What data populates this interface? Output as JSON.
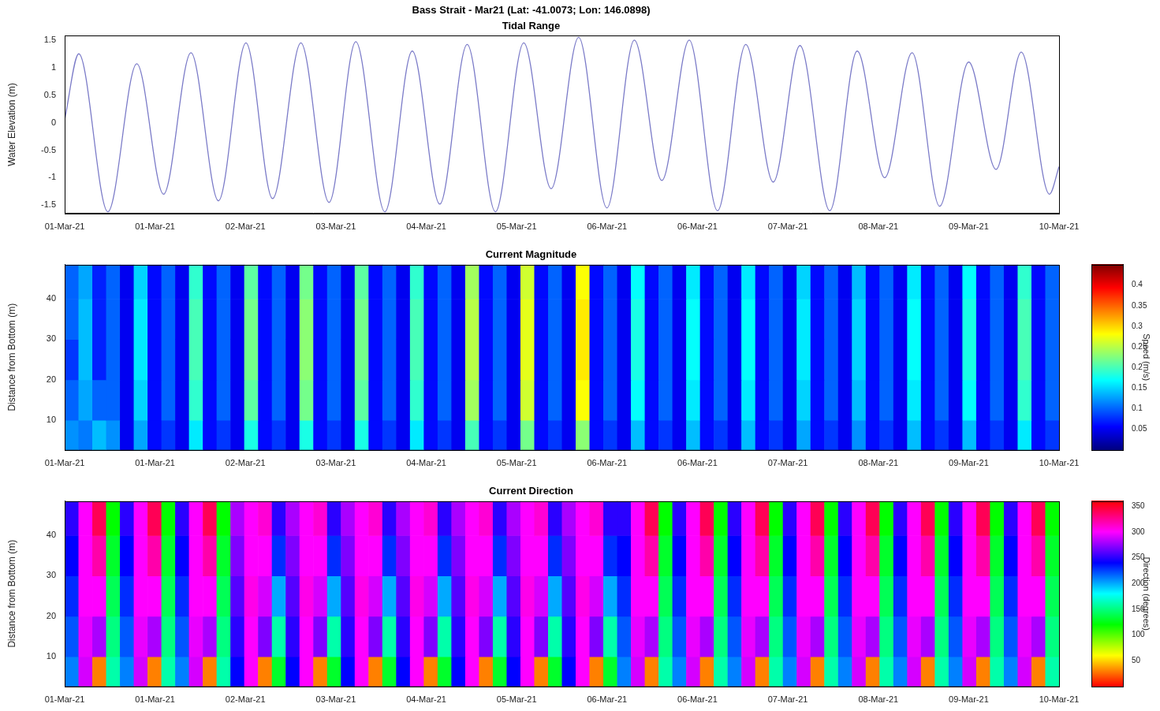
{
  "chart_data": [
    {
      "type": "line",
      "title": "Bass Strait - Mar21 (Lat: -41.0073; Lon: 146.0898)",
      "subtitle": "Tidal Range",
      "ylabel": "Water Elevation (m)",
      "color": "#7b7bc8",
      "grid": false,
      "x": [
        0,
        0.128,
        0.391,
        0.653,
        0.895,
        1.143,
        1.392,
        1.641,
        1.882,
        2.138,
        2.393,
        2.635,
        2.898,
        3.146,
        3.395,
        3.643,
        3.899,
        4.155,
        4.403,
        4.652,
        4.908,
        5.156,
        5.405,
        5.653,
        5.909,
        6.165,
        6.413,
        6.655,
        6.925,
        7.173,
        7.422,
        7.67,
        7.919,
        8.182,
        8.43,
        8.658,
        8.913,
        9
      ],
      "values": [
        0.05,
        1.25,
        -1.62,
        1.07,
        -1.3,
        1.27,
        -1.42,
        1.45,
        -1.38,
        1.45,
        -1.45,
        1.47,
        -1.62,
        1.3,
        -1.48,
        1.42,
        -1.62,
        1.45,
        -1.2,
        1.55,
        -1.55,
        1.5,
        -1.05,
        1.5,
        -1.6,
        1.42,
        -1.08,
        1.4,
        -1.6,
        1.3,
        -1.0,
        1.27,
        -1.52,
        1.1,
        -0.85,
        1.28,
        -1.3,
        -0.8
      ],
      "xlim": [
        0,
        9
      ],
      "xticks": [
        {
          "value": 0,
          "label": "01-Mar-21"
        },
        {
          "value": 0.818,
          "label": "01-Mar-21"
        },
        {
          "value": 1.636,
          "label": "02-Mar-21"
        },
        {
          "value": 2.455,
          "label": "03-Mar-21"
        },
        {
          "value": 3.273,
          "label": "04-Mar-21"
        },
        {
          "value": 4.091,
          "label": "05-Mar-21"
        },
        {
          "value": 4.909,
          "label": "06-Mar-21"
        },
        {
          "value": 5.727,
          "label": "06-Mar-21"
        },
        {
          "value": 6.545,
          "label": "07-Mar-21"
        },
        {
          "value": 7.364,
          "label": "08-Mar-21"
        },
        {
          "value": 8.182,
          "label": "09-Mar-21"
        },
        {
          "value": 9,
          "label": "10-Mar-21"
        }
      ],
      "ylim": [
        -1.65,
        1.58
      ],
      "yticks": [
        -1.5,
        -1,
        -0.5,
        0,
        0.5,
        1,
        1.5
      ]
    },
    {
      "type": "heatmap",
      "title": "Current Magnitude",
      "ylabel": "Distance from Bottom (m)",
      "color": "jet",
      "grid": false,
      "xlim": [
        0,
        9
      ],
      "xticks": [
        {
          "value": 0,
          "label": "01-Mar-21"
        },
        {
          "value": 0.818,
          "label": "01-Mar-21"
        },
        {
          "value": 1.636,
          "label": "02-Mar-21"
        },
        {
          "value": 2.455,
          "label": "03-Mar-21"
        },
        {
          "value": 3.273,
          "label": "04-Mar-21"
        },
        {
          "value": 4.091,
          "label": "05-Mar-21"
        },
        {
          "value": 4.909,
          "label": "06-Mar-21"
        },
        {
          "value": 5.727,
          "label": "06-Mar-21"
        },
        {
          "value": 6.545,
          "label": "07-Mar-21"
        },
        {
          "value": 7.364,
          "label": "08-Mar-21"
        },
        {
          "value": 8.182,
          "label": "09-Mar-21"
        },
        {
          "value": 9,
          "label": "10-Mar-21"
        }
      ],
      "ylim": [
        2.6,
        48.5
      ],
      "yticks": [
        10,
        20,
        30,
        40
      ],
      "x_edges": [
        0,
        0.125,
        0.25,
        0.375,
        0.5,
        0.625,
        0.75,
        0.875,
        1,
        1.125,
        1.25,
        1.375,
        1.5,
        1.625,
        1.75,
        1.875,
        2,
        2.125,
        2.25,
        2.375,
        2.5,
        2.625,
        2.75,
        2.875,
        3,
        3.125,
        3.25,
        3.375,
        3.5,
        3.625,
        3.75,
        3.875,
        4,
        4.125,
        4.25,
        4.375,
        4.5,
        4.625,
        4.75,
        4.875,
        5,
        5.125,
        5.25,
        5.375,
        5.5,
        5.625,
        5.75,
        5.875,
        6,
        6.125,
        6.25,
        6.375,
        6.5,
        6.625,
        6.75,
        6.875,
        7,
        7.125,
        7.25,
        7.375,
        7.5,
        7.625,
        7.75,
        7.875,
        8,
        8.125,
        8.25,
        8.375,
        8.5,
        8.625,
        8.75,
        8.875,
        9
      ],
      "y_edges": [
        2.6,
        10,
        20,
        30,
        40,
        48.5
      ],
      "cells": [
        [
          0.12,
          0.11,
          0.14,
          0.12,
          0.05,
          0.13,
          0.06,
          0.08,
          0.05,
          0.16,
          0.06,
          0.08,
          0.05,
          0.18,
          0.06,
          0.08,
          0.05,
          0.18,
          0.06,
          0.08,
          0.05,
          0.18,
          0.06,
          0.08,
          0.05,
          0.16,
          0.06,
          0.08,
          0.05,
          0.2,
          0.06,
          0.08,
          0.05,
          0.22,
          0.06,
          0.08,
          0.05,
          0.23,
          0.06,
          0.08,
          0.05,
          0.14,
          0.06,
          0.08,
          0.05,
          0.14,
          0.06,
          0.08,
          0.05,
          0.14,
          0.06,
          0.08,
          0.05,
          0.13,
          0.06,
          0.08,
          0.05,
          0.12,
          0.06,
          0.08,
          0.05,
          0.14,
          0.06,
          0.08,
          0.05,
          0.14,
          0.06,
          0.08,
          0.05,
          0.16,
          0.06,
          0.08
        ],
        [
          0.1,
          0.13,
          0.1,
          0.1,
          0.05,
          0.15,
          0.06,
          0.1,
          0.05,
          0.19,
          0.06,
          0.1,
          0.05,
          0.21,
          0.06,
          0.1,
          0.05,
          0.22,
          0.06,
          0.1,
          0.05,
          0.21,
          0.06,
          0.1,
          0.05,
          0.19,
          0.06,
          0.1,
          0.05,
          0.24,
          0.06,
          0.1,
          0.05,
          0.26,
          0.06,
          0.1,
          0.05,
          0.28,
          0.06,
          0.1,
          0.05,
          0.17,
          0.06,
          0.1,
          0.05,
          0.16,
          0.06,
          0.1,
          0.05,
          0.16,
          0.06,
          0.1,
          0.05,
          0.15,
          0.06,
          0.1,
          0.05,
          0.14,
          0.06,
          0.1,
          0.05,
          0.16,
          0.06,
          0.1,
          0.05,
          0.17,
          0.06,
          0.1,
          0.05,
          0.19,
          0.06,
          0.1
        ],
        [
          0.08,
          0.14,
          0.07,
          0.1,
          0.05,
          0.16,
          0.06,
          0.1,
          0.05,
          0.2,
          0.06,
          0.1,
          0.05,
          0.22,
          0.06,
          0.1,
          0.05,
          0.23,
          0.06,
          0.1,
          0.05,
          0.22,
          0.06,
          0.1,
          0.05,
          0.2,
          0.06,
          0.1,
          0.05,
          0.25,
          0.06,
          0.1,
          0.05,
          0.27,
          0.06,
          0.1,
          0.05,
          0.29,
          0.06,
          0.1,
          0.05,
          0.18,
          0.06,
          0.1,
          0.05,
          0.17,
          0.06,
          0.1,
          0.05,
          0.17,
          0.06,
          0.1,
          0.05,
          0.16,
          0.06,
          0.1,
          0.05,
          0.15,
          0.06,
          0.1,
          0.05,
          0.17,
          0.06,
          0.1,
          0.05,
          0.18,
          0.06,
          0.1,
          0.05,
          0.2,
          0.06,
          0.1
        ],
        [
          0.1,
          0.14,
          0.07,
          0.1,
          0.05,
          0.16,
          0.06,
          0.1,
          0.05,
          0.2,
          0.06,
          0.1,
          0.05,
          0.22,
          0.06,
          0.1,
          0.05,
          0.23,
          0.06,
          0.1,
          0.05,
          0.22,
          0.06,
          0.1,
          0.05,
          0.2,
          0.06,
          0.1,
          0.05,
          0.25,
          0.06,
          0.1,
          0.05,
          0.27,
          0.06,
          0.1,
          0.05,
          0.29,
          0.06,
          0.1,
          0.05,
          0.18,
          0.06,
          0.1,
          0.05,
          0.17,
          0.06,
          0.1,
          0.05,
          0.17,
          0.06,
          0.1,
          0.05,
          0.16,
          0.06,
          0.1,
          0.05,
          0.15,
          0.06,
          0.1,
          0.05,
          0.17,
          0.06,
          0.1,
          0.05,
          0.18,
          0.06,
          0.1,
          0.05,
          0.2,
          0.06,
          0.1
        ],
        [
          0.1,
          0.13,
          0.07,
          0.1,
          0.05,
          0.15,
          0.06,
          0.1,
          0.05,
          0.19,
          0.06,
          0.1,
          0.05,
          0.21,
          0.06,
          0.1,
          0.05,
          0.22,
          0.06,
          0.1,
          0.05,
          0.21,
          0.06,
          0.1,
          0.05,
          0.19,
          0.06,
          0.1,
          0.05,
          0.24,
          0.06,
          0.1,
          0.05,
          0.26,
          0.06,
          0.1,
          0.05,
          0.28,
          0.06,
          0.1,
          0.05,
          0.17,
          0.06,
          0.1,
          0.05,
          0.16,
          0.06,
          0.1,
          0.05,
          0.16,
          0.06,
          0.1,
          0.05,
          0.15,
          0.06,
          0.1,
          0.05,
          0.14,
          0.06,
          0.1,
          0.05,
          0.16,
          0.06,
          0.1,
          0.05,
          0.17,
          0.06,
          0.1,
          0.05,
          0.19,
          0.06,
          0.1
        ]
      ],
      "colorbar": {
        "label": "Speed (m/s)",
        "range": [
          0,
          0.45
        ],
        "ticks": [
          0.05,
          0.1,
          0.15,
          0.2,
          0.25,
          0.3,
          0.35,
          0.4
        ]
      }
    },
    {
      "type": "heatmap",
      "title": "Current Direction",
      "ylabel": "Distance from Bottom (m)",
      "color": "hsv",
      "grid": false,
      "xlim": [
        0,
        9
      ],
      "xticks": [
        {
          "value": 0,
          "label": "01-Mar-21"
        },
        {
          "value": 0.818,
          "label": "01-Mar-21"
        },
        {
          "value": 1.636,
          "label": "02-Mar-21"
        },
        {
          "value": 2.455,
          "label": "03-Mar-21"
        },
        {
          "value": 3.273,
          "label": "04-Mar-21"
        },
        {
          "value": 4.091,
          "label": "05-Mar-21"
        },
        {
          "value": 4.909,
          "label": "06-Mar-21"
        },
        {
          "value": 5.727,
          "label": "06-Mar-21"
        },
        {
          "value": 6.545,
          "label": "07-Mar-21"
        },
        {
          "value": 7.364,
          "label": "08-Mar-21"
        },
        {
          "value": 8.182,
          "label": "09-Mar-21"
        },
        {
          "value": 9,
          "label": "10-Mar-21"
        }
      ],
      "ylim": [
        2.6,
        48.5
      ],
      "yticks": [
        10,
        20,
        30,
        40
      ],
      "x_edges": [
        0,
        0.125,
        0.25,
        0.375,
        0.5,
        0.625,
        0.75,
        0.875,
        1,
        1.125,
        1.25,
        1.375,
        1.5,
        1.625,
        1.75,
        1.875,
        2,
        2.125,
        2.25,
        2.375,
        2.5,
        2.625,
        2.75,
        2.875,
        3,
        3.125,
        3.25,
        3.375,
        3.5,
        3.625,
        3.75,
        3.875,
        4,
        4.125,
        4.25,
        4.375,
        4.5,
        4.625,
        4.75,
        4.875,
        5,
        5.125,
        5.25,
        5.375,
        5.5,
        5.625,
        5.75,
        5.875,
        6,
        6.125,
        6.25,
        6.375,
        6.5,
        6.625,
        6.75,
        6.875,
        7,
        7.125,
        7.25,
        7.375,
        7.5,
        7.625,
        7.75,
        7.875,
        8,
        8.125,
        8.25,
        8.375,
        8.5,
        8.625,
        8.75,
        8.875,
        9
      ],
      "y_edges": [
        2.6,
        10,
        20,
        30,
        40,
        48.5
      ],
      "cells": [
        [
          210,
          290,
          30,
          160,
          210,
          290,
          30,
          160,
          210,
          290,
          30,
          160,
          240,
          300,
          30,
          130,
          240,
          300,
          30,
          130,
          240,
          300,
          30,
          130,
          240,
          300,
          30,
          130,
          240,
          300,
          30,
          130,
          240,
          300,
          30,
          130,
          240,
          300,
          30,
          130,
          210,
          290,
          30,
          160,
          210,
          290,
          30,
          160,
          210,
          290,
          30,
          160,
          210,
          290,
          30,
          160,
          210,
          290,
          30,
          160,
          210,
          290,
          30,
          160,
          210,
          290,
          30,
          160,
          210,
          290,
          30,
          160
        ],
        [
          220,
          295,
          280,
          150,
          220,
          295,
          280,
          150,
          220,
          295,
          280,
          150,
          250,
          300,
          270,
          160,
          250,
          300,
          270,
          160,
          250,
          300,
          270,
          160,
          250,
          300,
          270,
          160,
          250,
          300,
          270,
          160,
          250,
          300,
          270,
          160,
          250,
          300,
          270,
          160,
          220,
          295,
          280,
          150,
          220,
          295,
          280,
          150,
          220,
          295,
          280,
          150,
          220,
          295,
          280,
          150,
          220,
          295,
          280,
          150,
          220,
          295,
          280,
          150,
          220,
          295,
          280,
          150,
          220,
          295,
          280,
          150
        ],
        [
          230,
          300,
          300,
          140,
          230,
          300,
          300,
          140,
          230,
          300,
          300,
          140,
          260,
          305,
          290,
          200,
          260,
          305,
          290,
          200,
          260,
          305,
          290,
          200,
          260,
          305,
          290,
          200,
          260,
          305,
          290,
          200,
          260,
          305,
          290,
          200,
          260,
          305,
          290,
          200,
          230,
          300,
          300,
          140,
          230,
          300,
          300,
          140,
          230,
          300,
          300,
          140,
          230,
          300,
          300,
          140,
          230,
          300,
          300,
          140,
          230,
          300,
          300,
          140,
          230,
          300,
          300,
          140,
          230,
          300,
          300,
          140
        ],
        [
          240,
          300,
          320,
          130,
          240,
          300,
          320,
          130,
          240,
          300,
          320,
          130,
          270,
          300,
          300,
          230,
          270,
          300,
          300,
          230,
          270,
          300,
          300,
          230,
          270,
          300,
          300,
          230,
          270,
          300,
          300,
          230,
          270,
          300,
          300,
          230,
          270,
          300,
          300,
          230,
          240,
          300,
          320,
          130,
          240,
          300,
          320,
          130,
          240,
          300,
          320,
          130,
          240,
          300,
          320,
          130,
          240,
          300,
          320,
          130,
          240,
          300,
          320,
          130,
          240,
          300,
          320,
          130,
          240,
          300,
          320,
          130
        ],
        [
          250,
          300,
          340,
          120,
          250,
          300,
          340,
          120,
          250,
          300,
          340,
          120,
          280,
          300,
          310,
          250,
          280,
          300,
          310,
          250,
          280,
          300,
          310,
          250,
          280,
          300,
          310,
          250,
          280,
          300,
          310,
          250,
          280,
          300,
          310,
          250,
          280,
          300,
          310,
          250,
          250,
          300,
          340,
          120,
          250,
          300,
          340,
          120,
          250,
          300,
          340,
          120,
          250,
          300,
          340,
          120,
          250,
          300,
          340,
          120,
          250,
          300,
          340,
          120,
          250,
          300,
          340,
          120,
          250,
          300,
          340,
          120
        ]
      ],
      "colorbar": {
        "label": "Direction (degrees)",
        "range": [
          0,
          360
        ],
        "ticks": [
          50,
          100,
          150,
          200,
          250,
          300,
          350
        ]
      }
    }
  ]
}
